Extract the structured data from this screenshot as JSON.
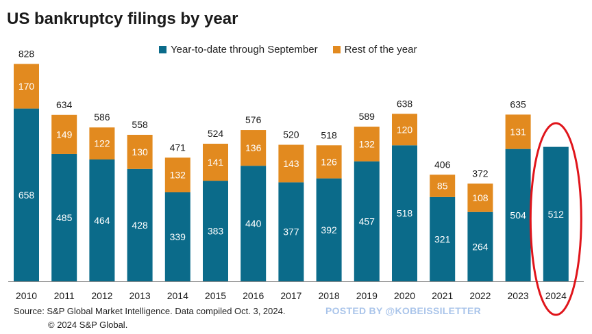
{
  "chart_data": {
    "type": "bar",
    "stacked": true,
    "title": "US bankruptcy filings by year",
    "categories": [
      "2010",
      "2011",
      "2012",
      "2013",
      "2014",
      "2015",
      "2016",
      "2017",
      "2018",
      "2019",
      "2020",
      "2021",
      "2022",
      "2023",
      "2024"
    ],
    "series": [
      {
        "name": "Year-to-date through September",
        "color": "#0b6b8a",
        "values": [
          658,
          485,
          464,
          428,
          339,
          383,
          440,
          377,
          392,
          457,
          518,
          321,
          264,
          504,
          512
        ]
      },
      {
        "name": "Rest of the year",
        "color": "#e28a1f",
        "values": [
          170,
          149,
          122,
          130,
          132,
          141,
          136,
          143,
          126,
          132,
          120,
          85,
          108,
          131,
          null
        ]
      }
    ],
    "totals": [
      828,
      634,
      586,
      558,
      471,
      524,
      576,
      520,
      518,
      589,
      638,
      406,
      372,
      635,
      null
    ],
    "ylim": [
      0,
      860
    ],
    "legend_position": "top",
    "grid": false,
    "highlight": {
      "category": "2024",
      "shape": "red-ellipse",
      "color": "#e0151b"
    }
  },
  "footer": {
    "source": "Source: S&P Global Market Intelligence.  Data compiled Oct. 3, 2024.",
    "copyright": "© 2024 S&P Global.",
    "watermark": "POSTED BY @KOBEISSILETTER"
  }
}
